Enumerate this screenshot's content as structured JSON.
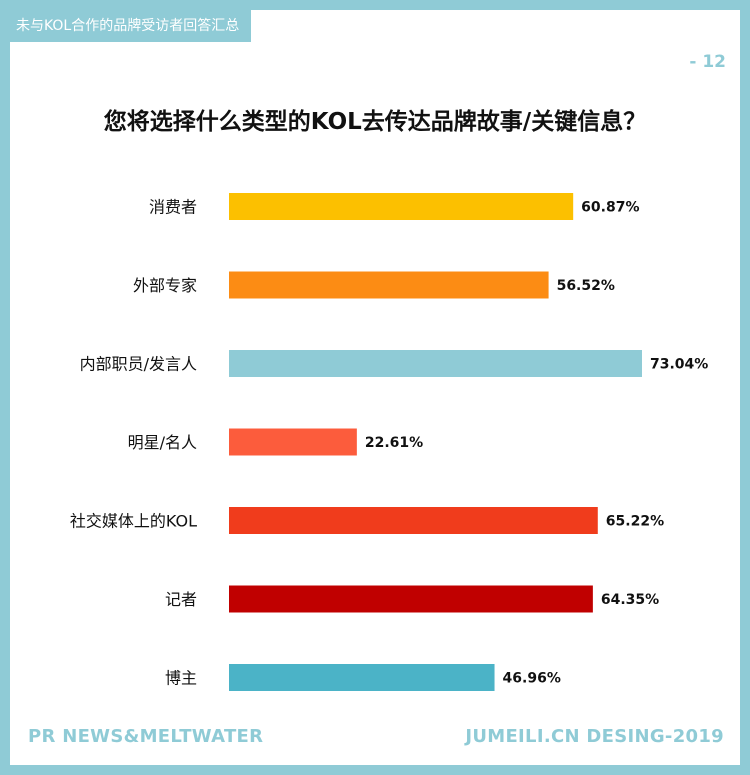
{
  "header": {
    "tag": "未与KOL合作的品牌受访者回答汇总",
    "page_number": "- 12"
  },
  "footer": {
    "source": "PR NEWS&MELTWATER",
    "credit": "JUMEILI.CN DESING-2019"
  },
  "colors": {
    "frame": "#8fcbd6",
    "text": "#111111"
  },
  "chart_data": {
    "type": "bar",
    "orientation": "horizontal",
    "title": "您将选择什么类型的KOL去传达品牌故事/关键信息？",
    "categories": [
      "消费者",
      "外部专家",
      "内部职员/发言人",
      "明星/名人",
      "社交媒体上的KOL",
      "记者",
      "博主"
    ],
    "values": [
      60.87,
      56.52,
      73.04,
      22.61,
      65.22,
      64.35,
      46.96
    ],
    "value_labels": [
      "60.87%",
      "56.52%",
      "73.04%",
      "22.61%",
      "65.22%",
      "64.35%",
      "46.96%"
    ],
    "bar_colors": [
      "#fcc000",
      "#fc8c14",
      "#8fcbd6",
      "#fc5c3c",
      "#f03c1c",
      "#c00000",
      "#4bb3c7"
    ],
    "xlim": [
      0,
      100
    ],
    "grid": false,
    "legend": "none"
  }
}
